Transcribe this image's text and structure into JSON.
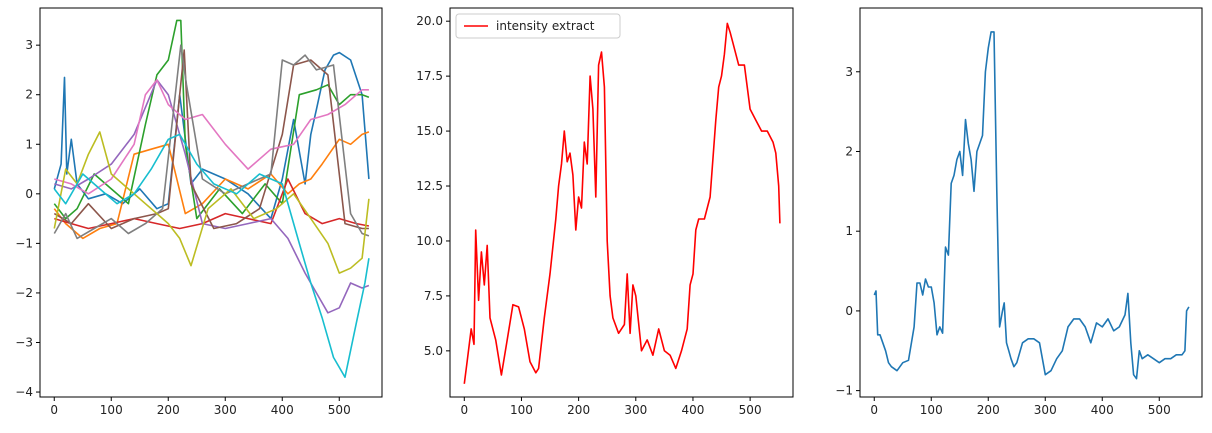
{
  "chart_data": [
    {
      "type": "line",
      "title": "",
      "xlabel": "",
      "ylabel": "",
      "xlim": [
        -25,
        575
      ],
      "ylim": [
        -4.1,
        3.75
      ],
      "xticks": [
        0,
        100,
        200,
        300,
        400,
        500
      ],
      "yticks": [
        -4,
        -3,
        -2,
        -1,
        0,
        1,
        2,
        3
      ],
      "xtick_labels": [
        "0",
        "100",
        "200",
        "300",
        "400",
        "500"
      ],
      "ytick_labels": [
        "−4",
        "−3",
        "−2",
        "−1",
        "0",
        "1",
        "2",
        "3"
      ],
      "grid": false,
      "series": [
        {
          "color": "#1f77b4",
          "x": [
            0,
            12,
            18,
            22,
            30,
            40,
            60,
            90,
            120,
            150,
            180,
            200,
            220,
            240,
            260,
            300,
            340,
            380,
            400,
            420,
            440,
            450,
            460,
            475,
            490,
            500,
            520,
            540,
            552
          ],
          "y": [
            0.1,
            0.6,
            2.35,
            0.4,
            1.1,
            0.2,
            -0.1,
            0.0,
            -0.2,
            0.1,
            -0.3,
            -0.2,
            2.0,
            0.2,
            0.5,
            0.3,
            0.0,
            -0.5,
            0.3,
            1.5,
            0.2,
            1.2,
            1.7,
            2.5,
            2.8,
            2.85,
            2.7,
            2.0,
            0.3
          ]
        },
        {
          "color": "#ff7f0e",
          "x": [
            0,
            20,
            50,
            80,
            110,
            140,
            170,
            200,
            230,
            260,
            300,
            340,
            380,
            410,
            430,
            450,
            470,
            500,
            520,
            540,
            552
          ],
          "y": [
            -0.3,
            -0.6,
            -0.9,
            -0.7,
            -0.6,
            0.8,
            0.9,
            1.0,
            -0.4,
            -0.2,
            0.3,
            0.1,
            0.4,
            0.0,
            0.2,
            0.3,
            0.6,
            1.1,
            1.0,
            1.2,
            1.25
          ]
        },
        {
          "color": "#2ca02c",
          "x": [
            0,
            20,
            40,
            70,
            100,
            130,
            160,
            180,
            200,
            215,
            222,
            230,
            250,
            290,
            330,
            370,
            400,
            430,
            460,
            480,
            500,
            520,
            540,
            552
          ],
          "y": [
            -0.2,
            -0.5,
            -0.3,
            0.4,
            0.1,
            -0.2,
            1.4,
            2.4,
            2.7,
            3.5,
            3.5,
            1.0,
            -0.5,
            0.1,
            -0.4,
            0.2,
            -0.2,
            2.0,
            2.1,
            2.2,
            1.8,
            2.0,
            2.0,
            1.95
          ]
        },
        {
          "color": "#d62728",
          "x": [
            0,
            30,
            60,
            100,
            140,
            180,
            220,
            260,
            300,
            340,
            380,
            410,
            440,
            470,
            500,
            530,
            552
          ],
          "y": [
            -0.5,
            -0.6,
            -0.7,
            -0.6,
            -0.5,
            -0.6,
            -0.7,
            -0.6,
            -0.4,
            -0.5,
            -0.6,
            0.3,
            -0.4,
            -0.6,
            -0.5,
            -0.6,
            -0.65
          ]
        },
        {
          "color": "#9467bd",
          "x": [
            0,
            30,
            60,
            100,
            140,
            180,
            200,
            230,
            260,
            300,
            340,
            380,
            410,
            440,
            460,
            480,
            500,
            520,
            540,
            552
          ],
          "y": [
            0.2,
            0.1,
            0.3,
            0.6,
            1.2,
            2.3,
            2.0,
            0.8,
            -0.6,
            -0.7,
            -0.6,
            -0.5,
            -0.9,
            -1.6,
            -2.0,
            -2.4,
            -2.3,
            -1.8,
            -1.9,
            -1.85
          ]
        },
        {
          "color": "#8c564b",
          "x": [
            0,
            30,
            60,
            100,
            140,
            180,
            200,
            220,
            228,
            240,
            280,
            320,
            360,
            400,
            420,
            450,
            480,
            510,
            540,
            552
          ],
          "y": [
            -0.4,
            -0.6,
            -0.2,
            -0.7,
            -0.5,
            -0.4,
            -0.3,
            2.0,
            2.9,
            0.2,
            -0.7,
            -0.6,
            -0.3,
            1.2,
            2.6,
            2.7,
            2.4,
            -0.6,
            -0.7,
            -0.7
          ]
        },
        {
          "color": "#e377c2",
          "x": [
            0,
            30,
            60,
            100,
            140,
            160,
            180,
            200,
            230,
            260,
            300,
            340,
            380,
            420,
            450,
            480,
            510,
            540,
            552
          ],
          "y": [
            0.3,
            0.2,
            0.0,
            0.3,
            1.0,
            2.0,
            2.3,
            1.8,
            1.5,
            1.6,
            1.0,
            0.5,
            0.9,
            1.0,
            1.5,
            1.6,
            1.8,
            2.1,
            2.1
          ]
        },
        {
          "color": "#7f7f7f",
          "x": [
            0,
            20,
            40,
            70,
            100,
            130,
            160,
            190,
            222,
            232,
            260,
            300,
            340,
            380,
            400,
            420,
            440,
            460,
            490,
            520,
            540,
            552
          ],
          "y": [
            -0.8,
            -0.4,
            -0.9,
            -0.7,
            -0.5,
            -0.8,
            -0.6,
            -0.3,
            3.0,
            2.2,
            0.3,
            0.0,
            0.2,
            0.4,
            2.7,
            2.6,
            2.8,
            2.5,
            2.6,
            -0.4,
            -0.8,
            -0.85
          ]
        },
        {
          "color": "#bcbd22",
          "x": [
            0,
            20,
            40,
            60,
            80,
            100,
            130,
            160,
            180,
            200,
            220,
            240,
            270,
            310,
            350,
            390,
            420,
            450,
            480,
            500,
            520,
            540,
            552
          ],
          "y": [
            -0.7,
            0.5,
            0.2,
            0.8,
            1.25,
            0.4,
            0.1,
            -0.2,
            -0.4,
            -0.6,
            -0.9,
            -1.45,
            -0.3,
            0.1,
            -0.5,
            -0.3,
            0.0,
            -0.5,
            -1.0,
            -1.6,
            -1.5,
            -1.3,
            -0.1
          ]
        },
        {
          "color": "#17becf",
          "x": [
            0,
            20,
            50,
            80,
            110,
            140,
            170,
            200,
            220,
            250,
            280,
            320,
            360,
            400,
            430,
            450,
            470,
            490,
            510,
            530,
            545,
            552
          ],
          "y": [
            0.1,
            -0.2,
            0.4,
            0.1,
            -0.2,
            0.0,
            0.5,
            1.1,
            1.2,
            0.6,
            0.2,
            0.0,
            0.4,
            0.2,
            -1.0,
            -1.8,
            -2.5,
            -3.3,
            -3.7,
            -2.6,
            -1.8,
            -1.3
          ]
        }
      ]
    },
    {
      "type": "line",
      "title": "",
      "xlabel": "",
      "ylabel": "",
      "xlim": [
        -25,
        575
      ],
      "ylim": [
        2.9,
        20.6
      ],
      "xticks": [
        0,
        100,
        200,
        300,
        400,
        500
      ],
      "yticks": [
        5.0,
        7.5,
        10.0,
        12.5,
        15.0,
        17.5,
        20.0
      ],
      "xtick_labels": [
        "0",
        "100",
        "200",
        "300",
        "400",
        "500"
      ],
      "ytick_labels": [
        "5.0",
        "7.5",
        "10.0",
        "12.5",
        "15.0",
        "17.5",
        "20.0"
      ],
      "legend_position": "top-left",
      "legend": [
        "intensity extract"
      ],
      "grid": false,
      "series": [
        {
          "name": "intensity extract",
          "color": "#ff0000",
          "x": [
            0,
            5,
            12,
            17,
            20,
            25,
            30,
            35,
            40,
            45,
            55,
            65,
            75,
            85,
            95,
            105,
            115,
            125,
            130,
            140,
            150,
            160,
            165,
            170,
            175,
            180,
            185,
            190,
            195,
            200,
            205,
            210,
            215,
            220,
            225,
            230,
            235,
            240,
            245,
            250,
            255,
            260,
            270,
            280,
            285,
            290,
            295,
            300,
            310,
            320,
            330,
            340,
            350,
            360,
            370,
            380,
            390,
            395,
            400,
            405,
            410,
            420,
            430,
            440,
            445,
            450,
            455,
            460,
            465,
            470,
            480,
            490,
            500,
            510,
            520,
            530,
            540,
            545,
            550,
            552
          ],
          "y": [
            3.5,
            4.5,
            6.0,
            5.3,
            10.5,
            7.3,
            9.5,
            8.0,
            9.8,
            6.5,
            5.5,
            3.9,
            5.5,
            7.1,
            7.0,
            6.0,
            4.5,
            4.0,
            4.2,
            6.5,
            8.5,
            11.0,
            12.5,
            13.5,
            15.0,
            13.6,
            14.0,
            13.0,
            10.5,
            12.0,
            11.5,
            14.5,
            13.5,
            17.5,
            16.0,
            12.0,
            18.0,
            18.6,
            17.0,
            10.0,
            7.5,
            6.5,
            5.8,
            6.2,
            8.5,
            5.8,
            8.0,
            7.5,
            5.0,
            5.5,
            4.8,
            6.0,
            5.0,
            4.8,
            4.2,
            5.0,
            6.0,
            8.0,
            8.5,
            10.5,
            11.0,
            11.0,
            12.0,
            15.5,
            17.0,
            17.5,
            18.5,
            19.9,
            19.5,
            19.0,
            18.0,
            18.0,
            16.0,
            15.5,
            15.0,
            15.0,
            14.5,
            14.0,
            12.5,
            10.8
          ]
        }
      ]
    },
    {
      "type": "line",
      "title": "",
      "xlabel": "",
      "ylabel": "",
      "xlim": [
        -25,
        575
      ],
      "ylim": [
        -1.08,
        3.8
      ],
      "xticks": [
        0,
        100,
        200,
        300,
        400,
        500
      ],
      "yticks": [
        -1,
        0,
        1,
        2,
        3
      ],
      "xtick_labels": [
        "0",
        "100",
        "200",
        "300",
        "400",
        "500"
      ],
      "ytick_labels": [
        "−1",
        "0",
        "1",
        "2",
        "3"
      ],
      "grid": false,
      "series": [
        {
          "color": "#1f77b4",
          "x": [
            0,
            3,
            6,
            10,
            20,
            25,
            30,
            40,
            45,
            50,
            60,
            70,
            75,
            80,
            85,
            90,
            95,
            100,
            105,
            110,
            115,
            120,
            125,
            130,
            135,
            140,
            145,
            150,
            155,
            160,
            165,
            170,
            175,
            180,
            185,
            190,
            195,
            200,
            205,
            210,
            215,
            220,
            225,
            228,
            232,
            236,
            240,
            245,
            250,
            260,
            270,
            280,
            290,
            300,
            310,
            320,
            330,
            340,
            350,
            360,
            370,
            380,
            390,
            400,
            410,
            420,
            430,
            440,
            445,
            450,
            455,
            460,
            465,
            470,
            480,
            490,
            500,
            510,
            520,
            530,
            540,
            545,
            548,
            552
          ],
          "y": [
            0.2,
            0.25,
            -0.3,
            -0.3,
            -0.5,
            -0.65,
            -0.7,
            -0.75,
            -0.7,
            -0.65,
            -0.62,
            -0.2,
            0.35,
            0.35,
            0.2,
            0.4,
            0.3,
            0.3,
            0.1,
            -0.3,
            -0.2,
            -0.28,
            0.8,
            0.7,
            1.6,
            1.7,
            1.9,
            2.0,
            1.7,
            2.4,
            2.1,
            1.9,
            1.5,
            2.0,
            2.1,
            2.2,
            3.0,
            3.3,
            3.5,
            3.5,
            1.5,
            -0.2,
            0.0,
            0.1,
            -0.4,
            -0.5,
            -0.6,
            -0.7,
            -0.65,
            -0.4,
            -0.35,
            -0.35,
            -0.4,
            -0.8,
            -0.75,
            -0.6,
            -0.5,
            -0.2,
            -0.1,
            -0.1,
            -0.2,
            -0.4,
            -0.15,
            -0.2,
            -0.1,
            -0.25,
            -0.2,
            -0.05,
            0.22,
            -0.4,
            -0.8,
            -0.85,
            -0.5,
            -0.6,
            -0.55,
            -0.6,
            -0.65,
            -0.6,
            -0.6,
            -0.55,
            -0.55,
            -0.5,
            0.0,
            0.05
          ]
        }
      ]
    }
  ]
}
